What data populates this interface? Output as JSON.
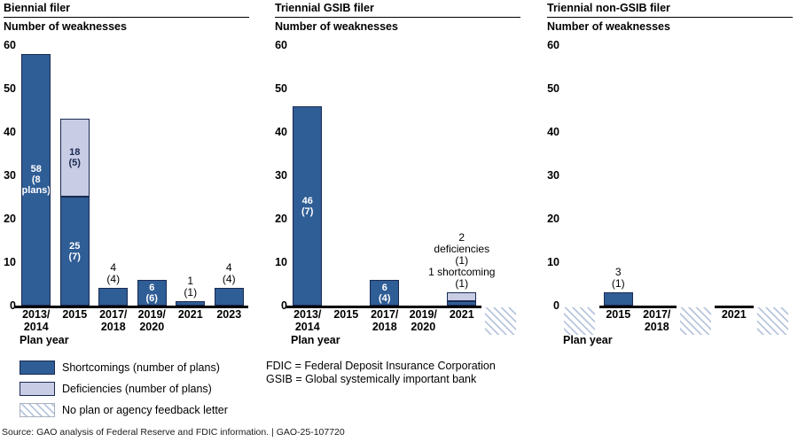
{
  "page": {
    "legend": {
      "items": [
        {
          "id": "shortcomings",
          "label": "Shortcomings (number of plans)"
        },
        {
          "id": "deficiencies",
          "label": "Deficiencies (number of plans)"
        },
        {
          "id": "no-plan",
          "label": "No plan or agency feedback letter"
        }
      ]
    },
    "notes": {
      "line1": "FDIC = Federal Deposit Insurance Corporation",
      "line2": "GSIB = Global systemically important bank"
    },
    "footer_source": "Source: GAO analysis of Federal Reserve and FDIC information.  |  GAO-25-107720"
  },
  "colors": {
    "shortcomings": "#2f5d95",
    "deficiencies": "#c8cce4",
    "bar_border": "#1b2a52",
    "hatch_line": "#b9c6dd",
    "axis": "#000000",
    "inside_label_light": "#ffffff",
    "inside_label_dark": "#1b2a52"
  },
  "chart_data": [
    {
      "type": "bar",
      "stacked": true,
      "title": "Biennial filer",
      "ylabel": "Number of weaknesses",
      "xlabel": "Plan year",
      "ylim": [
        0,
        60
      ],
      "yticks": [
        0,
        10,
        20,
        30,
        40,
        50,
        60
      ],
      "slots": [
        {
          "kind": "bar",
          "category": [
            "2013/",
            "2014"
          ],
          "segments": [
            {
              "series": "shortcomings",
              "value": 58,
              "label_lines": [
                "58",
                "(8",
                "plans)"
              ],
              "label_pos": "inside",
              "label_color": "white"
            }
          ]
        },
        {
          "kind": "bar",
          "category": [
            "2015"
          ],
          "segments": [
            {
              "series": "shortcomings",
              "value": 25,
              "label_lines": [
                "25",
                "(7)"
              ],
              "label_pos": "inside",
              "label_color": "white"
            },
            {
              "series": "deficiencies",
              "value": 18,
              "label_lines": [
                "18",
                "(5)"
              ],
              "label_pos": "inside",
              "label_color": "dark"
            }
          ]
        },
        {
          "kind": "bar",
          "category": [
            "2017/",
            "2018"
          ],
          "label_above": [
            "4",
            "(4)"
          ],
          "segments": [
            {
              "series": "shortcomings",
              "value": 4
            }
          ]
        },
        {
          "kind": "bar",
          "category": [
            "2019/",
            "2020"
          ],
          "segments": [
            {
              "series": "shortcomings",
              "value": 6,
              "label_lines": [
                "6",
                "(6)"
              ],
              "label_pos": "inside",
              "label_color": "white"
            }
          ]
        },
        {
          "kind": "bar",
          "category": [
            "2021"
          ],
          "label_above": [
            "1",
            "(1)"
          ],
          "segments": [
            {
              "series": "shortcomings",
              "value": 1
            }
          ]
        },
        {
          "kind": "bar",
          "category": [
            "2023"
          ],
          "label_above": [
            "4",
            "(4)"
          ],
          "segments": [
            {
              "series": "shortcomings",
              "value": 4
            }
          ]
        }
      ]
    },
    {
      "type": "bar",
      "stacked": true,
      "title": "Triennial GSIB filer",
      "ylabel": "Number of weaknesses",
      "xlabel": "Plan year",
      "ylim": [
        0,
        60
      ],
      "yticks": [
        0,
        10,
        20,
        30,
        40,
        50,
        60
      ],
      "slots": [
        {
          "kind": "bar",
          "category": [
            "2013/",
            "2014"
          ],
          "segments": [
            {
              "series": "shortcomings",
              "value": 46,
              "label_lines": [
                "46",
                "(7)"
              ],
              "label_pos": "inside",
              "label_color": "white"
            }
          ]
        },
        {
          "kind": "empty",
          "category": [
            "2015"
          ]
        },
        {
          "kind": "bar",
          "category": [
            "2017/",
            "2018"
          ],
          "segments": [
            {
              "series": "shortcomings",
              "value": 6,
              "label_lines": [
                "6",
                "(4)"
              ],
              "label_pos": "inside",
              "label_color": "white"
            }
          ]
        },
        {
          "kind": "empty",
          "category": [
            "2019/",
            "2020"
          ]
        },
        {
          "kind": "bar",
          "category": [
            "2021"
          ],
          "label_above": [
            "2",
            "deficiencies",
            "(1)",
            "1 shortcoming",
            "(1)"
          ],
          "segments": [
            {
              "series": "shortcomings",
              "value": 1
            },
            {
              "series": "deficiencies",
              "value": 2
            }
          ]
        },
        {
          "kind": "hatch"
        }
      ]
    },
    {
      "type": "bar",
      "stacked": true,
      "title": "Triennial non-GSIB filer",
      "ylabel": "Number of weaknesses",
      "xlabel": "Plan year",
      "ylim": [
        0,
        60
      ],
      "yticks": [
        0,
        10,
        20,
        30,
        40,
        50,
        60
      ],
      "slots": [
        {
          "kind": "hatch"
        },
        {
          "kind": "bar",
          "category": [
            "2015"
          ],
          "label_above": [
            "3",
            "(1)"
          ],
          "segments": [
            {
              "series": "shortcomings",
              "value": 3
            }
          ]
        },
        {
          "kind": "empty",
          "category": [
            "2017/",
            "2018"
          ]
        },
        {
          "kind": "hatch"
        },
        {
          "kind": "empty",
          "category": [
            "2021"
          ]
        },
        {
          "kind": "hatch"
        }
      ]
    }
  ]
}
